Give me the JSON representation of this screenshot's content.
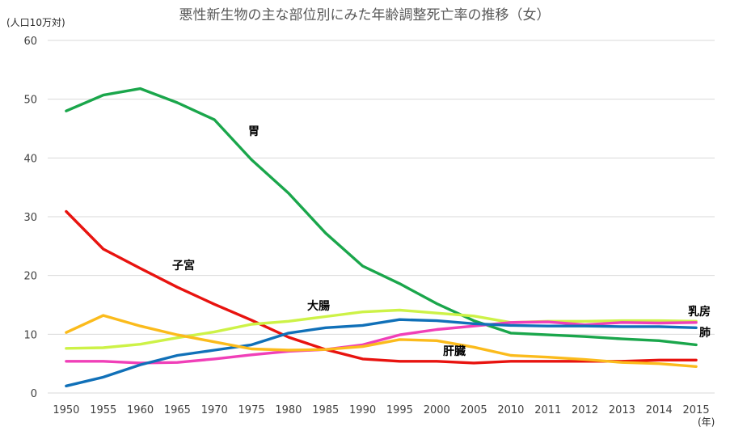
{
  "chart_data": {
    "type": "line",
    "title": "悪性新生物の主な部位別にみた年齢調整死亡率の推移（女）",
    "ylabel": "(人口10万対)",
    "xlabel": "(年)",
    "ylim": [
      0,
      60
    ],
    "yticks": [
      0,
      10,
      20,
      30,
      40,
      50,
      60
    ],
    "categories": [
      "1950",
      "1955",
      "1960",
      "1965",
      "1970",
      "1975",
      "1980",
      "1985",
      "1990",
      "1995",
      "2000",
      "2005",
      "2010",
      "2011",
      "2012",
      "2013",
      "2014",
      "2015"
    ],
    "grid": true,
    "legend": "inline labels",
    "series": [
      {
        "name": "胃",
        "color": "#1aa64b",
        "values": [
          48.0,
          50.7,
          51.8,
          49.4,
          46.5,
          39.7,
          34.0,
          27.2,
          21.6,
          18.6,
          15.2,
          12.3,
          10.2,
          9.9,
          9.6,
          9.2,
          8.9,
          8.2
        ]
      },
      {
        "name": "子宮",
        "color": "#e8130f",
        "values": [
          30.9,
          24.5,
          21.2,
          18.0,
          15.1,
          12.4,
          9.5,
          7.4,
          5.8,
          5.4,
          5.4,
          5.1,
          5.4,
          5.4,
          5.4,
          5.4,
          5.6,
          5.6
        ]
      },
      {
        "name": "大腸",
        "color": "#cdf247",
        "values": [
          7.6,
          7.7,
          8.3,
          9.4,
          10.4,
          11.7,
          12.2,
          13.0,
          13.8,
          14.1,
          13.6,
          13.1,
          12.0,
          12.2,
          12.2,
          12.3,
          12.3,
          12.2
        ]
      },
      {
        "name": "乳房",
        "color": "#f03fb8",
        "values": [
          5.4,
          5.4,
          5.1,
          5.2,
          5.8,
          6.5,
          7.1,
          7.4,
          8.2,
          9.9,
          10.8,
          11.4,
          12.0,
          12.1,
          11.6,
          12.0,
          11.9,
          12.0
        ]
      },
      {
        "name": "肺",
        "color": "#1070b8",
        "values": [
          1.2,
          2.7,
          4.8,
          6.4,
          7.3,
          8.2,
          10.2,
          11.1,
          11.5,
          12.5,
          12.3,
          11.8,
          11.5,
          11.4,
          11.4,
          11.3,
          11.3,
          11.1
        ]
      },
      {
        "name": "肝臓",
        "color": "#fbbb1c",
        "values": [
          10.3,
          13.2,
          11.4,
          9.9,
          8.7,
          7.5,
          7.3,
          7.4,
          7.9,
          9.1,
          8.9,
          7.8,
          6.4,
          6.1,
          5.7,
          5.2,
          5.0,
          4.5
        ]
      }
    ]
  }
}
